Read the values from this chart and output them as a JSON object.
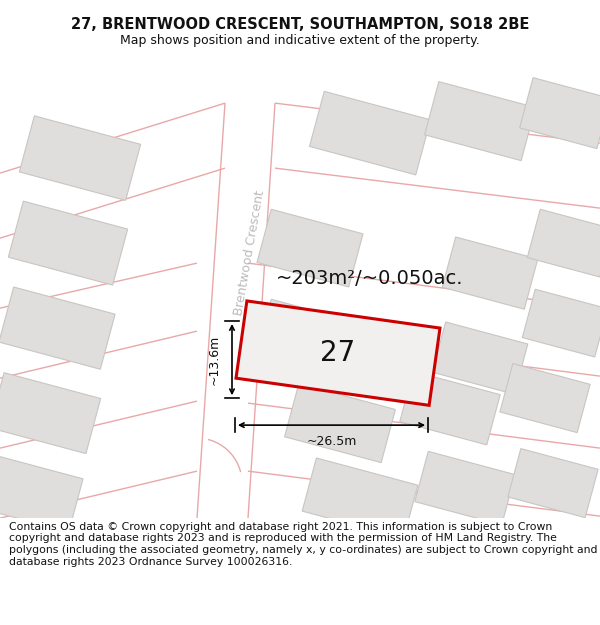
{
  "title_line1": "27, BRENTWOOD CRESCENT, SOUTHAMPTON, SO18 2BE",
  "title_line2": "Map shows position and indicative extent of the property.",
  "area_label": "~203m²/~0.050ac.",
  "number_label": "27",
  "width_label": "~26.5m",
  "height_label": "~13.6m",
  "street_label": "Brentwood Crescent",
  "footer_text": "Contains OS data © Crown copyright and database right 2021. This information is subject to Crown copyright and database rights 2023 and is reproduced with the permission of HM Land Registry. The polygons (including the associated geometry, namely x, y co-ordinates) are subject to Crown copyright and database rights 2023 Ordnance Survey 100026316.",
  "map_bg": "#f2f0ee",
  "building_fill": "#e0dedd",
  "building_edge": "#c8c5c2",
  "road_line": "#e8a8a8",
  "highlight_color": "#cc0000",
  "title_fontsize": 10.5,
  "subtitle_fontsize": 9,
  "footer_fontsize": 7.8,
  "street_fontsize": 9,
  "area_fontsize": 14,
  "number_fontsize": 20,
  "dim_fontsize": 9
}
